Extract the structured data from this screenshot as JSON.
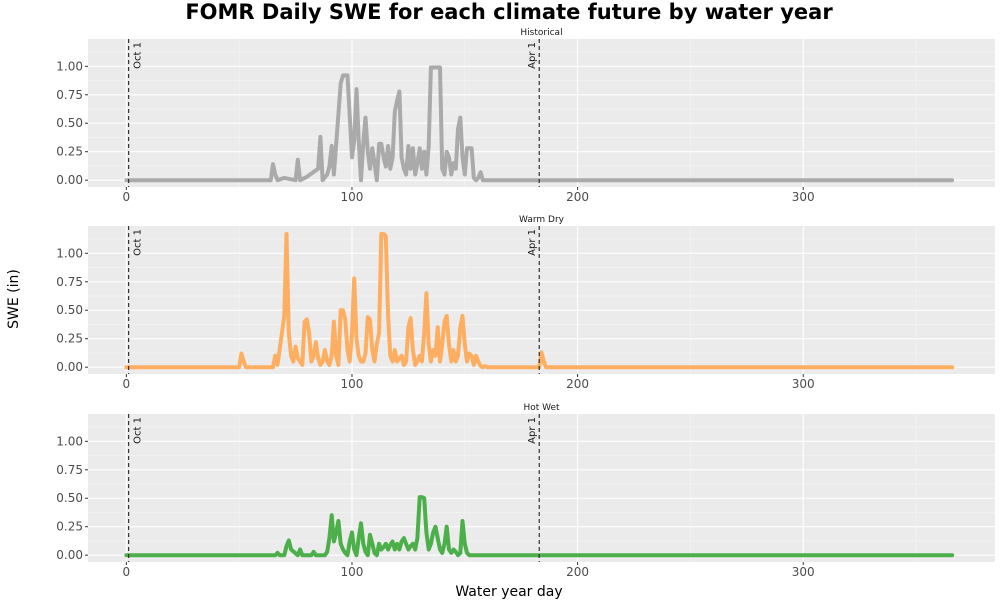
{
  "chart_data": {
    "type": "line",
    "title": "FOMR Daily SWE for each climate future by water year",
    "xlabel": "Water year day",
    "ylabel": "SWE (in)",
    "xlim": [
      -17,
      385
    ],
    "ylim": [
      -0.06,
      1.24
    ],
    "x_ticks": [
      0,
      100,
      200,
      300
    ],
    "y_ticks": [
      0,
      0.25,
      0.5,
      0.75,
      1.0
    ],
    "y_tick_labels": [
      "0.00",
      "0.25",
      "0.50",
      "0.75",
      "1.00"
    ],
    "grid": true,
    "reference_lines": [
      {
        "x": 1,
        "label": "Oct 1",
        "style": "dashed"
      },
      {
        "x": 183,
        "label": "Apr 1",
        "style": "dashed"
      }
    ],
    "panels": [
      {
        "name": "Historical",
        "color": "#AAAAAA",
        "x": [
          0,
          64,
          65,
          66,
          67,
          70,
          75,
          76,
          77,
          80,
          85,
          86,
          87,
          89,
          90,
          91,
          92,
          95,
          96,
          97,
          98,
          100,
          101,
          102,
          103,
          104,
          105,
          106,
          107,
          108,
          109,
          110,
          111,
          112,
          113,
          114,
          115,
          116,
          117,
          118,
          119,
          120,
          121,
          122,
          123,
          124,
          125,
          126,
          127,
          128,
          129,
          130,
          131,
          132,
          133,
          134,
          135,
          136,
          137,
          138,
          139,
          140,
          141,
          142,
          143,
          144,
          145,
          146,
          147,
          148,
          149,
          150,
          151,
          152,
          153,
          154,
          155,
          156,
          157,
          158,
          160,
          165,
          168,
          170,
          175,
          366
        ],
        "y": [
          0,
          0,
          0.14,
          0.05,
          0,
          0.02,
          0,
          0.18,
          0,
          0.03,
          0.1,
          0.38,
          0,
          0.05,
          0.12,
          0.3,
          0.05,
          0.85,
          0.92,
          0.92,
          0.92,
          0.2,
          0.35,
          0.8,
          0.35,
          0,
          0.33,
          0.55,
          0.25,
          0.1,
          0.28,
          0.15,
          0,
          0.32,
          0.32,
          0.2,
          0.12,
          0.3,
          0.1,
          0.2,
          0.6,
          0.7,
          0.78,
          0.2,
          0.1,
          0.05,
          0.3,
          0.1,
          0.28,
          0.05,
          0.15,
          0.28,
          0.1,
          0.25,
          0.05,
          0.3,
          0.99,
          0.99,
          0.99,
          0.99,
          0.99,
          0.1,
          0.05,
          0.25,
          0.2,
          0.05,
          0.15,
          0.1,
          0.45,
          0.55,
          0.2,
          0.05,
          0.28,
          0.28,
          0.28,
          0.02,
          0,
          0.02,
          0.07,
          0,
          0,
          0,
          0,
          0,
          0,
          0
        ]
      },
      {
        "name": "Warm Dry",
        "color": "#FDAE61",
        "x": [
          0,
          50,
          51,
          52,
          53,
          65,
          66,
          67,
          70,
          71,
          72,
          73,
          74,
          75,
          76,
          77,
          78,
          79,
          80,
          81,
          82,
          83,
          84,
          85,
          86,
          87,
          88,
          89,
          90,
          91,
          92,
          93,
          94,
          95,
          96,
          97,
          98,
          99,
          100,
          101,
          102,
          103,
          104,
          105,
          106,
          107,
          108,
          109,
          110,
          111,
          112,
          113,
          114,
          115,
          116,
          117,
          118,
          119,
          120,
          121,
          122,
          123,
          124,
          125,
          126,
          127,
          128,
          129,
          130,
          131,
          132,
          133,
          134,
          135,
          136,
          137,
          138,
          139,
          140,
          141,
          142,
          143,
          144,
          145,
          146,
          147,
          148,
          149,
          150,
          151,
          152,
          153,
          154,
          155,
          156,
          157,
          158,
          159,
          160,
          183,
          184,
          185,
          186,
          366
        ],
        "y": [
          0,
          0,
          0.12,
          0.05,
          0,
          0,
          0.1,
          0.02,
          0.45,
          1.17,
          0.3,
          0.1,
          0.05,
          0.18,
          0.08,
          0.05,
          0.02,
          0.4,
          0.42,
          0.3,
          0.05,
          0.1,
          0.22,
          0.08,
          0.02,
          0.05,
          0.15,
          0.05,
          0.02,
          0.1,
          0.4,
          0.1,
          0.02,
          0.5,
          0.5,
          0.42,
          0.15,
          0.05,
          0.3,
          0.78,
          0.25,
          0.1,
          0.05,
          0.05,
          0.12,
          0.44,
          0.42,
          0.15,
          0.05,
          0.2,
          0.3,
          1.17,
          1.17,
          1.15,
          0.45,
          0.1,
          0.05,
          0.15,
          0.05,
          0.08,
          0.1,
          0.02,
          0.05,
          0.35,
          0.43,
          0.15,
          0.02,
          0.05,
          0.1,
          0.05,
          0.3,
          0.65,
          0.2,
          0.05,
          0.15,
          0.1,
          0.35,
          0.05,
          0.2,
          0.4,
          0.45,
          0.2,
          0.05,
          0.15,
          0.05,
          0.1,
          0.35,
          0.45,
          0.2,
          0.05,
          0.12,
          0.1,
          0.02,
          0.1,
          0.05,
          0.01,
          0,
          0.01,
          0,
          0,
          0.13,
          0.05,
          0,
          0
        ]
      },
      {
        "name": "Hot Wet",
        "color": "#4DAF4A",
        "x": [
          0,
          66,
          67,
          68,
          70,
          71,
          72,
          73,
          76,
          77,
          78,
          82,
          83,
          84,
          88,
          89,
          90,
          91,
          92,
          93,
          94,
          95,
          96,
          97,
          98,
          99,
          100,
          101,
          102,
          103,
          104,
          105,
          106,
          107,
          108,
          109,
          110,
          111,
          112,
          113,
          114,
          115,
          116,
          117,
          118,
          119,
          120,
          121,
          122,
          123,
          124,
          125,
          126,
          127,
          128,
          129,
          130,
          131,
          132,
          133,
          134,
          135,
          136,
          137,
          138,
          139,
          140,
          141,
          142,
          143,
          144,
          145,
          146,
          147,
          148,
          149,
          150,
          151,
          152,
          153,
          154,
          155,
          156,
          157,
          158,
          159,
          160,
          161,
          162,
          163,
          366
        ],
        "y": [
          0,
          0,
          0.02,
          0,
          0,
          0.08,
          0.13,
          0.05,
          0,
          0.05,
          0,
          0,
          0.03,
          0,
          0,
          0.03,
          0.15,
          0.35,
          0.12,
          0.2,
          0.3,
          0.1,
          0.05,
          0.02,
          0,
          0.12,
          0.2,
          0.05,
          0,
          0.15,
          0.28,
          0.1,
          0.03,
          0,
          0.18,
          0.1,
          0.02,
          0,
          0.1,
          0.05,
          0.07,
          0.1,
          0.05,
          0.09,
          0.12,
          0.05,
          0.1,
          0.05,
          0.12,
          0.15,
          0.1,
          0.05,
          0.08,
          0.1,
          0.05,
          0.15,
          0.51,
          0.51,
          0.5,
          0.2,
          0.05,
          0.1,
          0.2,
          0.25,
          0.15,
          0.05,
          0.02,
          0.1,
          0.25,
          0.05,
          0.02,
          0.05,
          0.03,
          0,
          0.02,
          0.3,
          0.1,
          0.02,
          0,
          0,
          0,
          0,
          0,
          0,
          0,
          0,
          0,
          0,
          0,
          0,
          0
        ]
      }
    ]
  }
}
